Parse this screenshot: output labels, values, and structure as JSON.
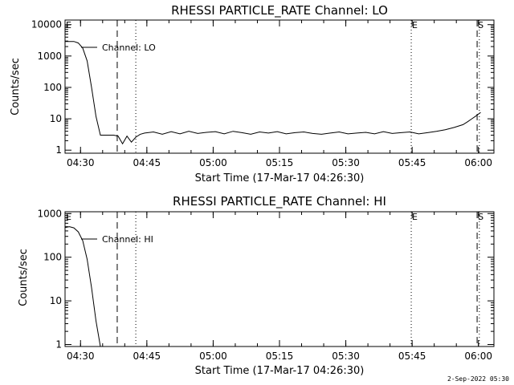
{
  "footer": {
    "timestamp": "2-Sep-2022 05:30"
  },
  "chart_data": [
    {
      "type": "line",
      "title": "RHESSI PARTICLE_RATE Channel: LO",
      "xlabel": "Start Time (17-Mar-17 04:26:30)",
      "ylabel": "Counts/sec",
      "yscale": "log",
      "ylim": [
        0.8,
        14000
      ],
      "xlim_minutes": [
        0,
        97
      ],
      "xtick_labels": [
        "04:30",
        "04:45",
        "05:00",
        "05:15",
        "05:30",
        "05:45",
        "06:00"
      ],
      "xtick_minutes": [
        3.5,
        18.5,
        33.5,
        48.5,
        63.5,
        78.5,
        93.5
      ],
      "ytick_labels": [
        "1",
        "10",
        "100",
        "1000",
        "10000"
      ],
      "ytick_values": [
        1,
        10,
        100,
        1000,
        10000
      ],
      "legend": [
        "Channel: LO"
      ],
      "markers": [
        {
          "label": "E",
          "minute": 0,
          "style": "dotted"
        },
        {
          "label": "",
          "minute": 11.8,
          "style": "dashed"
        },
        {
          "label": "",
          "minute": 16.0,
          "style": "dotted"
        },
        {
          "label": "E",
          "minute": 78.3,
          "style": "dotted"
        },
        {
          "label": "S",
          "minute": 93.2,
          "style": "dashed"
        },
        {
          "label": "",
          "minute": 93.7,
          "style": "dotted"
        }
      ],
      "series": [
        {
          "x": [
            0,
            2,
            3,
            4,
            5,
            6,
            7,
            8,
            9,
            10,
            11,
            12,
            13,
            14,
            15,
            16,
            17,
            18,
            20,
            22,
            24,
            26,
            28,
            30,
            32,
            34,
            36,
            38,
            40,
            42,
            44,
            46,
            48,
            50,
            52,
            54,
            56,
            58,
            60,
            62,
            64,
            66,
            68,
            70,
            72,
            74,
            76,
            78,
            80,
            82,
            84,
            86,
            88,
            90,
            91,
            92,
            93,
            94
          ],
          "y": [
            2900,
            2900,
            2600,
            1800,
            700,
            100,
            12,
            3,
            3,
            3,
            3,
            2.8,
            1.6,
            2.8,
            1.8,
            2.6,
            3.2,
            3.5,
            3.8,
            3.2,
            3.9,
            3.3,
            4.0,
            3.4,
            3.7,
            3.9,
            3.3,
            4.0,
            3.6,
            3.2,
            3.8,
            3.5,
            3.9,
            3.3,
            3.6,
            3.8,
            3.4,
            3.2,
            3.5,
            3.8,
            3.3,
            3.5,
            3.7,
            3.3,
            3.9,
            3.4,
            3.6,
            3.8,
            3.3,
            3.6,
            4.0,
            4.5,
            5.3,
            6.5,
            8,
            10,
            12.5,
            16
          ]
        }
      ]
    },
    {
      "type": "line",
      "title": "RHESSI PARTICLE_RATE Channel: HI",
      "xlabel": "Start Time (17-Mar-17 04:26:30)",
      "ylabel": "Counts/sec",
      "yscale": "log",
      "ylim": [
        0.9,
        1100
      ],
      "xlim_minutes": [
        0,
        97
      ],
      "xtick_labels": [
        "04:30",
        "04:45",
        "05:00",
        "05:15",
        "05:30",
        "05:45",
        "06:00"
      ],
      "xtick_minutes": [
        3.5,
        18.5,
        33.5,
        48.5,
        63.5,
        78.5,
        93.5
      ],
      "ytick_labels": [
        "1",
        "10",
        "100",
        "1000"
      ],
      "ytick_values": [
        1,
        10,
        100,
        1000
      ],
      "legend": [
        "Channel: HI"
      ],
      "markers": [
        {
          "label": "E",
          "minute": 0,
          "style": "dotted"
        },
        {
          "label": "",
          "minute": 11.8,
          "style": "dashed"
        },
        {
          "label": "",
          "minute": 16.0,
          "style": "dotted"
        },
        {
          "label": "E",
          "minute": 78.3,
          "style": "dotted"
        },
        {
          "label": "S",
          "minute": 93.2,
          "style": "dashed"
        },
        {
          "label": "",
          "minute": 93.7,
          "style": "dotted"
        }
      ],
      "series": [
        {
          "x": [
            0,
            1,
            2,
            3,
            4,
            5,
            6,
            7,
            8
          ],
          "y": [
            480,
            500,
            470,
            380,
            240,
            90,
            20,
            3.5,
            0.9
          ]
        }
      ]
    }
  ]
}
